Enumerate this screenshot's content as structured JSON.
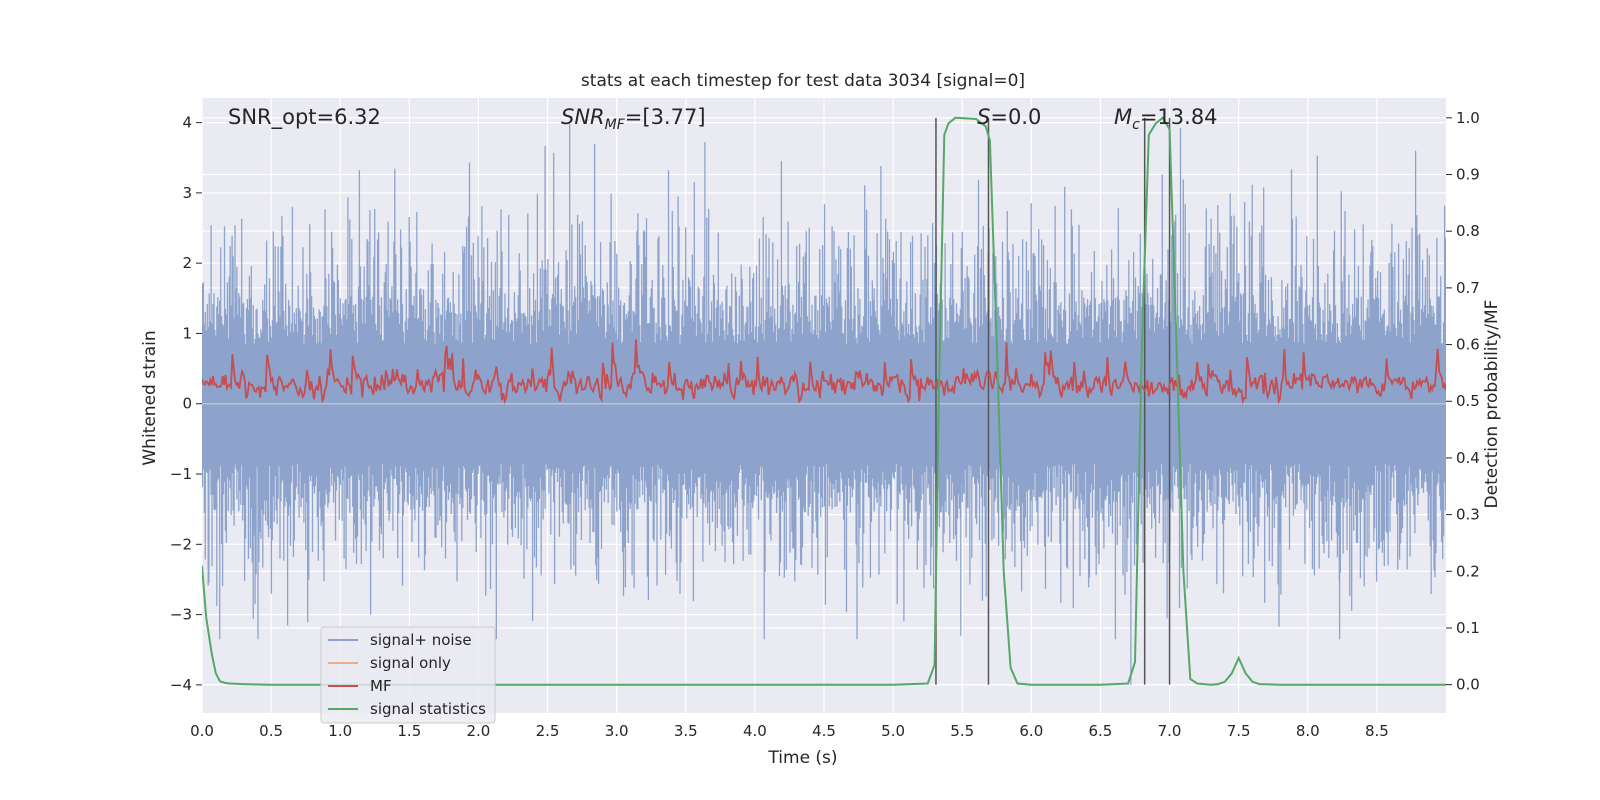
{
  "chart_data": {
    "type": "line",
    "title": "stats at each timestep for test data 3034 [signal=0]",
    "xlabel": "Time (s)",
    "ylabel_left": "Whitened strain",
    "ylabel_right": "Detection probability/MF",
    "xlim": [
      0.0,
      9.0
    ],
    "ylim_left": [
      -4.4,
      4.35
    ],
    "ylim_right": [
      -0.05,
      1.035
    ],
    "x_ticks": [
      "0.0",
      "0.5",
      "1.0",
      "1.5",
      "2.0",
      "2.5",
      "3.0",
      "3.5",
      "4.0",
      "4.5",
      "5.0",
      "5.5",
      "6.0",
      "6.5",
      "7.0",
      "7.5",
      "8.0",
      "8.5"
    ],
    "y_ticks_left": [
      "4",
      "3",
      "2",
      "1",
      "0",
      "−1",
      "−2",
      "−3",
      "−4"
    ],
    "y_ticks_right": [
      "1.0",
      "0.9",
      "0.8",
      "0.7",
      "0.6",
      "0.5",
      "0.4",
      "0.3",
      "0.2",
      "0.1",
      "0.0"
    ],
    "grid": true,
    "legend_position": "lower-left",
    "annotations": {
      "snr_opt": "SNR_opt=6.32",
      "snr_mf_sym": "SNR",
      "snr_mf_sub": "MF",
      "snr_mf_rest": "=[3.77]",
      "s_sym": "S",
      "s_rest": "=0.0",
      "mc_sym": "M",
      "mc_sub": "c",
      "mc_rest": "=13.84"
    },
    "series": [
      {
        "name": "signal+ noise",
        "color": "#8ea3cc",
        "axis": "left",
        "kind": "noise-band",
        "core_amplitude": 1.55,
        "peak_max": 4.0,
        "peak_min": -3.35
      },
      {
        "name": "signal only",
        "color": "#f0ab8f",
        "axis": "left",
        "values": []
      },
      {
        "name": "MF",
        "color": "#c44e52",
        "axis": "right",
        "kind": "noisy",
        "baseline": 0.53,
        "range": [
          0.5,
          0.63
        ]
      },
      {
        "name": "signal statistics",
        "color": "#55a868",
        "axis": "right",
        "x": [
          0.0,
          0.03,
          0.07,
          0.1,
          0.13,
          0.17,
          0.2,
          0.3,
          0.5,
          1.0,
          2.0,
          3.0,
          4.0,
          5.0,
          5.25,
          5.3,
          5.33,
          5.37,
          5.4,
          5.45,
          5.6,
          5.67,
          5.7,
          5.75,
          5.8,
          5.85,
          5.9,
          6.0,
          6.5,
          6.7,
          6.75,
          6.8,
          6.85,
          6.9,
          6.95,
          7.0,
          7.05,
          7.1,
          7.15,
          7.2,
          7.3,
          7.35,
          7.4,
          7.45,
          7.5,
          7.55,
          7.6,
          7.65,
          7.8,
          8.0,
          8.5,
          9.0
        ],
        "values": [
          0.21,
          0.12,
          0.055,
          0.02,
          0.006,
          0.003,
          0.002,
          0.001,
          0.0,
          0.0,
          0.0,
          0.0,
          0.0,
          0.0,
          0.002,
          0.035,
          0.5,
          0.97,
          0.99,
          1.0,
          0.998,
          0.985,
          0.96,
          0.6,
          0.2,
          0.03,
          0.002,
          0.0,
          0.0,
          0.002,
          0.04,
          0.6,
          0.97,
          0.99,
          1.0,
          0.98,
          0.6,
          0.2,
          0.01,
          0.002,
          0.0,
          0.001,
          0.005,
          0.02,
          0.047,
          0.02,
          0.005,
          0.001,
          0.0,
          0.0,
          0.0,
          0.0
        ]
      },
      {
        "name": "",
        "color": "#555555",
        "axis": "right",
        "kind": "vlines",
        "x": [
          5.31,
          5.69,
          6.82,
          7.0
        ],
        "top": 1.0
      }
    ]
  }
}
